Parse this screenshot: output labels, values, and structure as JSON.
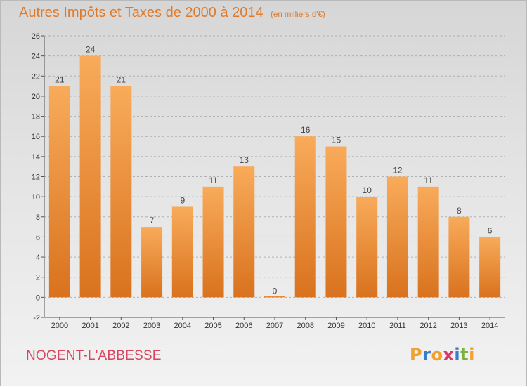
{
  "header": {
    "title": "Autres Impôts et Taxes de 2000 à 2014",
    "unit": "(en milliers d'€)"
  },
  "location": "NOGENT-L'ABBESSE",
  "brand": {
    "letters": [
      "P",
      "r",
      "o",
      "x",
      "i",
      "t",
      "i"
    ],
    "colors": [
      "#f0a12e",
      "#3a7dc9",
      "#f0a12e",
      "#d63a6b",
      "#3a7dc9",
      "#7ab23c",
      "#f0a12e"
    ]
  },
  "colors": {
    "bar_light": "#f8ab5a",
    "bar_dark": "#d9721e",
    "title": "#e07a2a",
    "place": "#d9445e",
    "grid": "#b0b0b0"
  },
  "chart_data": {
    "type": "bar",
    "categories": [
      "2000",
      "2001",
      "2002",
      "2003",
      "2004",
      "2005",
      "2006",
      "2007",
      "2008",
      "2009",
      "2010",
      "2011",
      "2012",
      "2013",
      "2014"
    ],
    "values": [
      21,
      24,
      21,
      7,
      9,
      11,
      13,
      0,
      16,
      15,
      10,
      12,
      11,
      8,
      6
    ],
    "data_labels": [
      "21",
      "24",
      "21",
      "7",
      "9",
      "11",
      "13",
      "0",
      "16",
      "15",
      "10",
      "12",
      "11",
      "8",
      "6"
    ],
    "ylim": [
      -2,
      26
    ],
    "yticks": [
      -2,
      0,
      2,
      4,
      6,
      8,
      10,
      12,
      14,
      16,
      18,
      20,
      22,
      24,
      26
    ],
    "grid": true,
    "legend": "none"
  }
}
